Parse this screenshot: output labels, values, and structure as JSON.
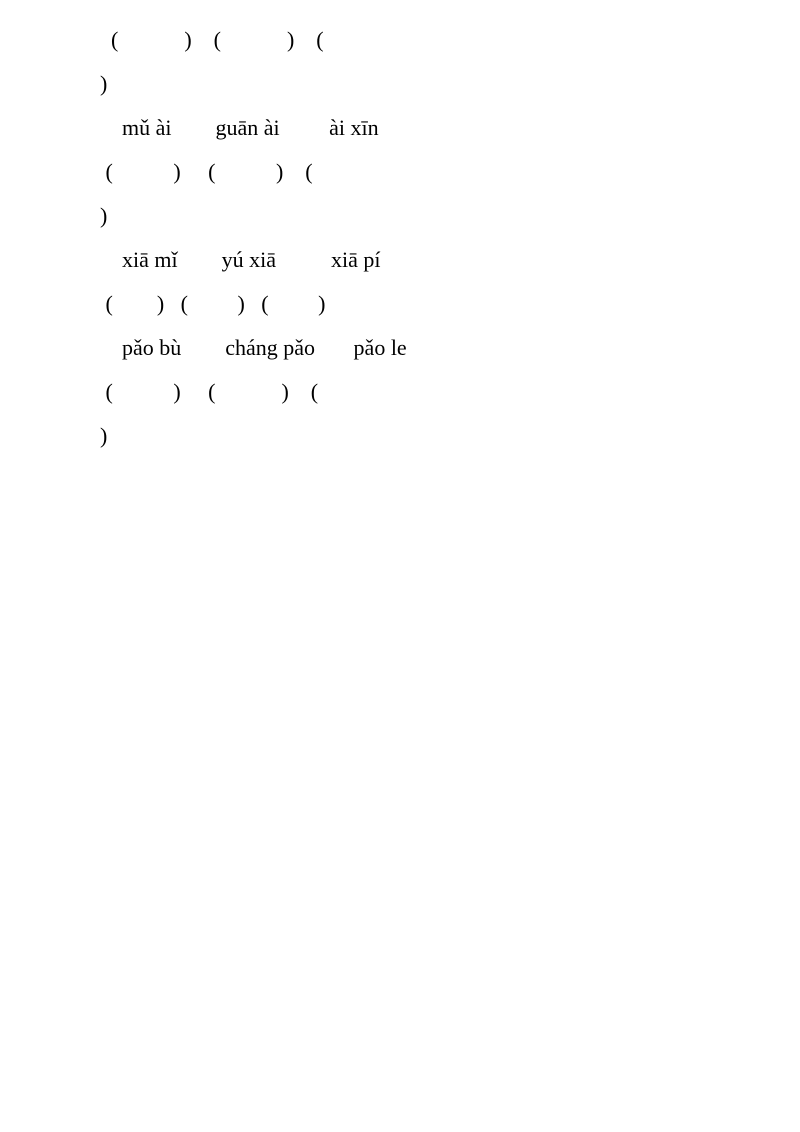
{
  "lines": [
    {
      "text": "  (            )    (            )    ("
    },
    {
      "text": ")"
    },
    {
      "text": "    mǔ ài        guān ài         ài xīn"
    },
    {
      "text": " (           )     (           )    ("
    },
    {
      "text": ")"
    },
    {
      "text": "    xiā mǐ        yú xiā          xiā pí"
    },
    {
      "text": " (        )   (         )   (         )"
    },
    {
      "text": "    pǎo bù        cháng pǎo       pǎo le"
    },
    {
      "text": " (           )     (            )    ("
    },
    {
      "text": ")"
    }
  ]
}
